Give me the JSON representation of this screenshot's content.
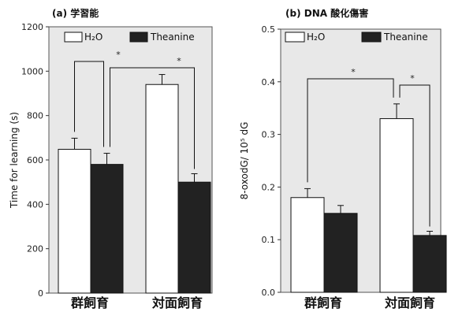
{
  "chart_data": [
    {
      "type": "bar",
      "title": "(a)  学習能",
      "ylabel": "Time for learning (s)",
      "ylim": [
        0,
        1200
      ],
      "yticks": [
        "0",
        "200",
        "400",
        "600",
        "800",
        "1000",
        "1200"
      ],
      "categories": [
        "群飼育",
        "対面飼育"
      ],
      "series": [
        {
          "name": "H₂O",
          "color": "#ffffff",
          "values": [
            648,
            940
          ],
          "errors": [
            50,
            45
          ]
        },
        {
          "name": "Theanine",
          "color": "#222222",
          "values": [
            580,
            500
          ],
          "errors": [
            50,
            38
          ]
        }
      ],
      "annotations": [
        "*",
        "*"
      ],
      "legend_position": "top"
    },
    {
      "type": "bar",
      "title": "(b) DNA 酸化傷害",
      "ylabel": "8-oxodG/ 10⁵ dG",
      "ylim": [
        0,
        0.5
      ],
      "yticks": [
        "0.0",
        "0.1",
        "0.2",
        "0.3",
        "0.4",
        "0.5"
      ],
      "categories": [
        "群飼育",
        "対面飼育"
      ],
      "series": [
        {
          "name": "H₂O",
          "color": "#ffffff",
          "values": [
            0.18,
            0.33
          ],
          "errors": [
            0.017,
            0.028
          ]
        },
        {
          "name": "Theanine",
          "color": "#222222",
          "values": [
            0.15,
            0.108
          ],
          "errors": [
            0.015,
            0.008
          ]
        }
      ],
      "annotations": [
        "*",
        "*"
      ],
      "legend_position": "top"
    }
  ]
}
